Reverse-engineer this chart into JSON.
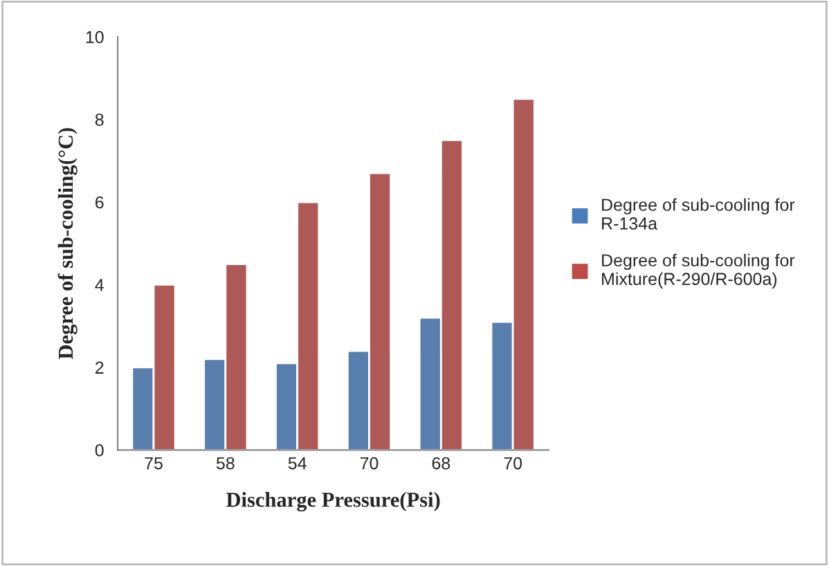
{
  "chart_data": {
    "type": "bar",
    "xlabel": "Discharge Pressure(Psi)",
    "ylabel": "Degree of sub-cooling(°C)",
    "categories": [
      "75",
      "58",
      "54",
      "70",
      "68",
      "70"
    ],
    "series": [
      {
        "name": "Degree of sub-cooling for R-134a",
        "color": "#4a7ebb",
        "values": [
          2.0,
          2.2,
          2.1,
          2.4,
          3.2,
          3.1
        ]
      },
      {
        "name": "Degree of sub-cooling for Mixture(R-290/R-600a)",
        "color": "#be4b48",
        "values": [
          4.0,
          4.5,
          6.0,
          6.7,
          7.5,
          8.5
        ]
      }
    ],
    "ylim": [
      0,
      10
    ],
    "yticks": [
      0,
      2,
      4,
      6,
      8,
      10
    ],
    "grid": false,
    "legend": "right"
  }
}
